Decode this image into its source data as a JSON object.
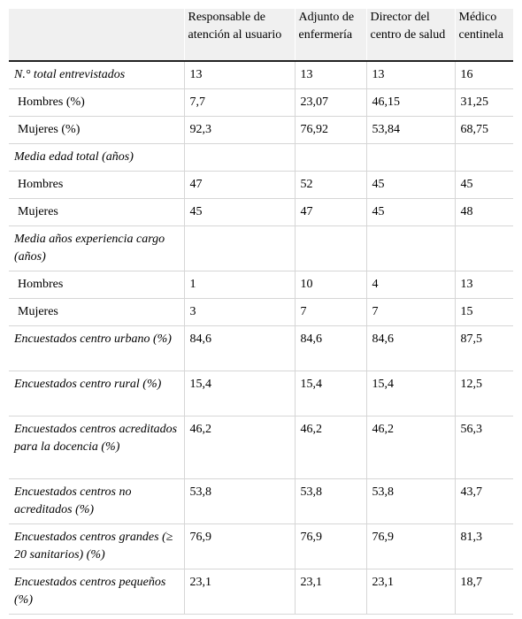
{
  "headers": [
    "",
    "Responsable de atención al usuario",
    "Adjunto de enfermería",
    "Director del centro de salud",
    "Médico centinela"
  ],
  "rows": [
    {
      "label": "N.° total entrevistados",
      "style": "italic",
      "lines": 1,
      "cells": [
        "13",
        "13",
        "13",
        "16"
      ]
    },
    {
      "label": "Hombres (%)",
      "style": "sub",
      "lines": 1,
      "cells": [
        "7,7",
        "23,07",
        "46,15",
        "31,25"
      ]
    },
    {
      "label": "Mujeres (%)",
      "style": "sub",
      "lines": 1,
      "cells": [
        "92,3",
        "76,92",
        "53,84",
        "68,75"
      ]
    },
    {
      "label": "Media edad total (años)",
      "style": "italic",
      "lines": 1,
      "cells": [
        "",
        "",
        "",
        ""
      ]
    },
    {
      "label": "Hombres",
      "style": "sub",
      "lines": 1,
      "cells": [
        "47",
        "52",
        "45",
        "45"
      ]
    },
    {
      "label": "Mujeres",
      "style": "sub",
      "lines": 1,
      "cells": [
        "45",
        "47",
        "45",
        "48"
      ]
    },
    {
      "label": "Media años experiencia cargo (años)",
      "style": "italic",
      "lines": 2,
      "cells": [
        "",
        "",
        "",
        ""
      ]
    },
    {
      "label": "Hombres",
      "style": "sub",
      "lines": 1,
      "cells": [
        "1",
        "10",
        "4",
        "13"
      ]
    },
    {
      "label": "Mujeres",
      "style": "sub",
      "lines": 1,
      "cells": [
        "3",
        "7",
        "7",
        "15"
      ]
    },
    {
      "label": "Encuestados centro urbano (%)",
      "style": "italic",
      "lines": 2,
      "cells": [
        "84,6",
        "84,6",
        "84,6",
        "87,5"
      ]
    },
    {
      "label": "Encuestados centro rural (%)",
      "style": "italic",
      "lines": 2,
      "cells": [
        "15,4",
        "15,4",
        "15,4",
        "12,5"
      ]
    },
    {
      "label": "Encuestados centros acreditados para la docencia (%)",
      "style": "italic",
      "lines": 3,
      "cells": [
        "46,2",
        "46,2",
        "46,2",
        "56,3"
      ]
    },
    {
      "label": "Encuestados centros no acreditados (%)",
      "style": "italic",
      "lines": 2,
      "cells": [
        "53,8",
        "53,8",
        "53,8",
        "43,7"
      ]
    },
    {
      "label": "Encuestados centros grandes (≥ 20 sanitarios) (%)",
      "style": "italic",
      "lines": 2,
      "cells": [
        "76,9",
        "76,9",
        "76,9",
        "81,3"
      ]
    },
    {
      "label": "Encuestados centros pequeños (%)",
      "style": "italic",
      "lines": 2,
      "cells": [
        "23,1",
        "23,1",
        "23,1",
        "18,7"
      ]
    }
  ]
}
